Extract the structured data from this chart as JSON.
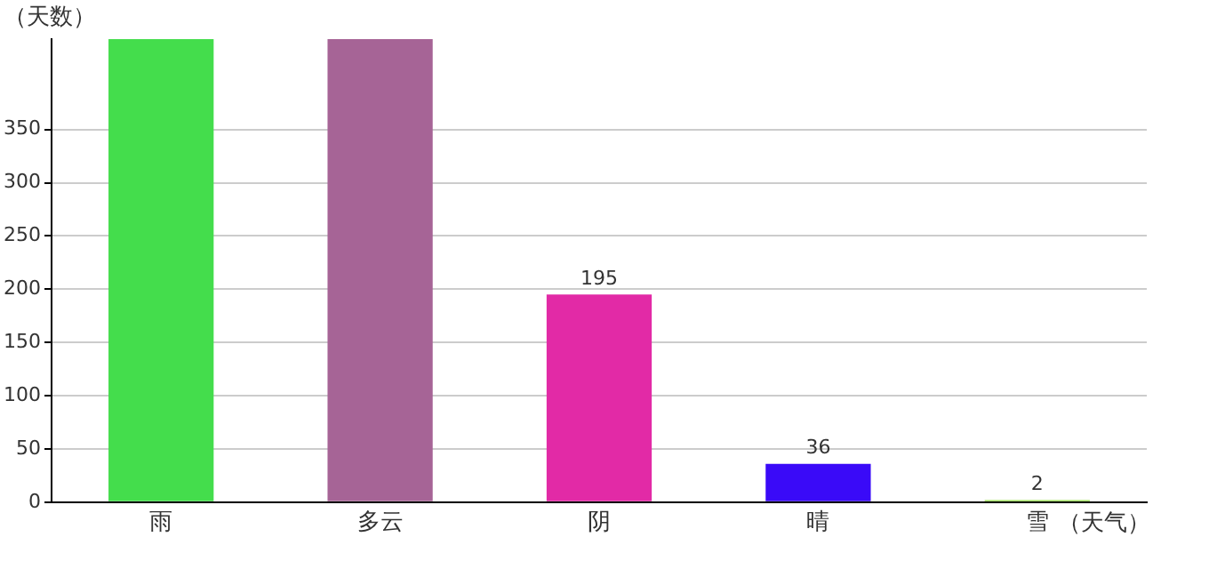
{
  "chart_data": {
    "type": "bar",
    "xlabel": "（天气）",
    "ylabel": "（天数）",
    "categories": [
      "雨",
      "多云",
      "阴",
      "晴",
      "雪"
    ],
    "values": [
      435,
      435,
      195,
      36,
      2
    ],
    "colors": [
      "#44dd4c",
      "#a66496",
      "#e22aa6",
      "#3a0af8",
      "#8fdc40"
    ],
    "value_labels": [
      null,
      null,
      "195",
      "36",
      "2"
    ],
    "ylim": [
      0,
      435
    ],
    "yticks": [
      0,
      50,
      100,
      150,
      200,
      250,
      300,
      350
    ],
    "grid": "y",
    "legend": false
  }
}
